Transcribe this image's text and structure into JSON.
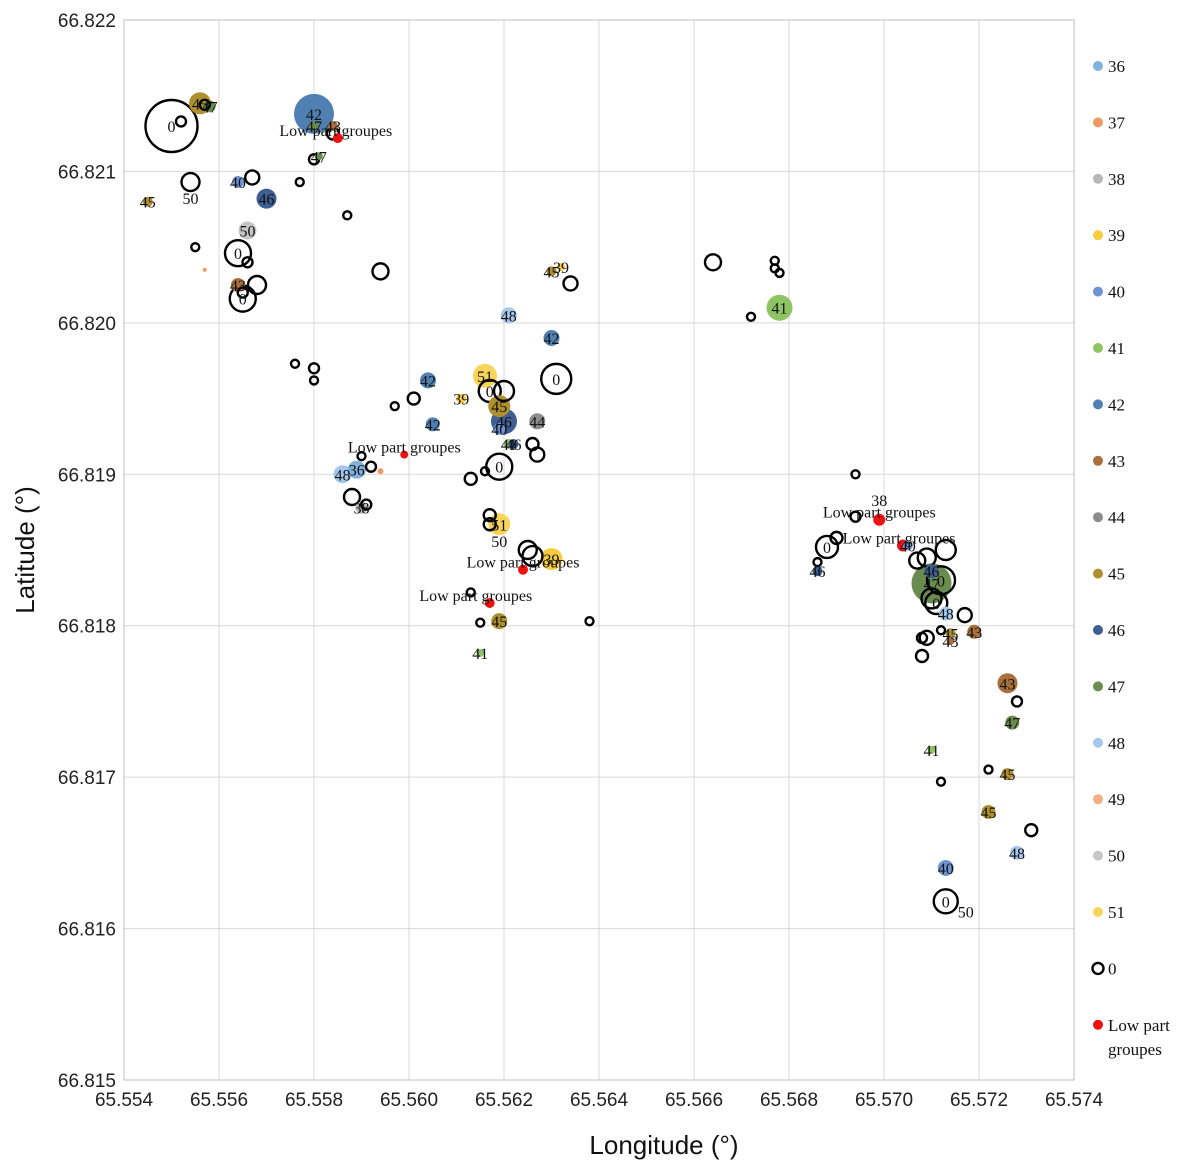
{
  "chart_data": {
    "type": "scatter",
    "xlabel": "Longitude (°)",
    "ylabel": "Latitude (°)",
    "xlim": [
      65.554,
      65.574
    ],
    "ylim": [
      66.815,
      66.822
    ],
    "x_ticks": [
      "65.554",
      "65.556",
      "65.558",
      "65.560",
      "65.562",
      "65.564",
      "65.566",
      "65.568",
      "65.570",
      "65.572",
      "65.574"
    ],
    "y_ticks": [
      "66.815",
      "66.816",
      "66.817",
      "66.818",
      "66.819",
      "66.820",
      "66.821",
      "66.822"
    ],
    "grid": "on",
    "legend_position": "right",
    "legend": [
      {
        "name": "36",
        "color": "#7FB2DC",
        "kind": "dot"
      },
      {
        "name": "37",
        "color": "#EE9A64",
        "kind": "dot"
      },
      {
        "name": "38",
        "color": "#B7B7B7",
        "kind": "dot"
      },
      {
        "name": "39",
        "color": "#F8CC3C",
        "kind": "dot"
      },
      {
        "name": "40",
        "color": "#6D93D2",
        "kind": "dot"
      },
      {
        "name": "41",
        "color": "#8FC464",
        "kind": "dot"
      },
      {
        "name": "42",
        "color": "#4F80B1",
        "kind": "dot"
      },
      {
        "name": "43",
        "color": "#A9703E",
        "kind": "dot"
      },
      {
        "name": "44",
        "color": "#8C8C8C",
        "kind": "dot"
      },
      {
        "name": "45",
        "color": "#AE902F",
        "kind": "dot"
      },
      {
        "name": "46",
        "color": "#3F5E93",
        "kind": "dot"
      },
      {
        "name": "47",
        "color": "#6A8C4E",
        "kind": "dot"
      },
      {
        "name": "48",
        "color": "#A6C8EC",
        "kind": "dot"
      },
      {
        "name": "49",
        "color": "#F4AE83",
        "kind": "dot"
      },
      {
        "name": "50",
        "color": "#C6C6C6",
        "kind": "dot"
      },
      {
        "name": "51",
        "color": "#F9D45A",
        "kind": "dot"
      },
      {
        "name": "0",
        "color": "#000000",
        "kind": "ring"
      },
      {
        "name": "Low part groupes",
        "color": "#EE1111",
        "kind": "dot"
      }
    ],
    "low_label": "Low part groupes",
    "series_colors": {
      "36": "#7FB2DC",
      "37": "#EE9A64",
      "38": "#B7B7B7",
      "39": "#F8CC3C",
      "40": "#6D93D2",
      "41": "#8FC464",
      "42": "#4F80B1",
      "43": "#A9703E",
      "44": "#8C8C8C",
      "45": "#AE902F",
      "46": "#3F5E93",
      "47": "#6A8C4E",
      "48": "#A6C8EC",
      "49": "#F4AE83",
      "50": "#C6C6C6",
      "51": "#F9D45A",
      "0": "#000000",
      "low": "#EE1111"
    },
    "points": [
      {
        "x": 65.555,
        "y": 66.8213,
        "s": "0",
        "label": "0",
        "r": 26
      },
      {
        "x": 65.5552,
        "y": 66.82133,
        "s": "0",
        "label": "",
        "r": 5
      },
      {
        "x": 65.5556,
        "y": 66.82145,
        "s": "45",
        "label": "45",
        "r": 11
      },
      {
        "x": 65.5557,
        "y": 66.82144,
        "s": "0",
        "label": "",
        "r": 5
      },
      {
        "x": 65.5558,
        "y": 66.82143,
        "s": "47",
        "label": "47",
        "r": 6
      },
      {
        "x": 65.5554,
        "y": 66.82093,
        "s": "0",
        "label": "",
        "r": 9
      },
      {
        "x": 65.5554,
        "y": 66.82093,
        "s": "",
        "label": "50",
        "r": 0,
        "lx": 0,
        "ly": 16
      },
      {
        "x": 65.5545,
        "y": 66.8208,
        "s": "45",
        "label": "45",
        "r": 5
      },
      {
        "x": 65.5564,
        "y": 66.82093,
        "s": "40",
        "label": "40",
        "r": 6
      },
      {
        "x": 65.5567,
        "y": 66.82096,
        "s": "0",
        "label": "",
        "r": 7
      },
      {
        "x": 65.557,
        "y": 66.82082,
        "s": "46",
        "label": "46",
        "r": 10
      },
      {
        "x": 65.5566,
        "y": 66.82061,
        "s": "50",
        "label": "50",
        "r": 9
      },
      {
        "x": 65.5555,
        "y": 66.8205,
        "s": "0",
        "label": "",
        "r": 4
      },
      {
        "x": 65.5557,
        "y": 66.82035,
        "s": "37",
        "label": "",
        "r": 2
      },
      {
        "x": 65.5564,
        "y": 66.82046,
        "s": "0",
        "label": "0",
        "r": 13
      },
      {
        "x": 65.5566,
        "y": 66.8204,
        "s": "0",
        "label": "",
        "r": 5
      },
      {
        "x": 65.5564,
        "y": 66.82025,
        "s": "43",
        "label": "43",
        "r": 7
      },
      {
        "x": 65.5565,
        "y": 66.8202,
        "s": "0",
        "label": "",
        "r": 5
      },
      {
        "x": 65.5565,
        "y": 66.82016,
        "s": "0",
        "label": "0",
        "r": 13
      },
      {
        "x": 65.5568,
        "y": 66.82025,
        "s": "0",
        "label": "",
        "r": 9
      },
      {
        "x": 65.558,
        "y": 66.82138,
        "s": "42",
        "label": "42",
        "r": 20
      },
      {
        "x": 65.558,
        "y": 66.8213,
        "s": "47",
        "label": "47",
        "r": 5
      },
      {
        "x": 65.5584,
        "y": 66.8213,
        "s": "43",
        "label": "43",
        "r": 5
      },
      {
        "x": 65.5584,
        "y": 66.82125,
        "s": "0",
        "label": "",
        "r": 6
      },
      {
        "x": 65.5585,
        "y": 66.82122,
        "s": "low",
        "label": "Low part groupes",
        "r": 5,
        "lx": -2,
        "ly": 6
      },
      {
        "x": 65.558,
        "y": 66.82108,
        "s": "0",
        "label": "",
        "r": 5
      },
      {
        "x": 65.5581,
        "y": 66.8211,
        "s": "47",
        "label": "47",
        "r": 4
      },
      {
        "x": 65.5577,
        "y": 66.82093,
        "s": "0",
        "label": "",
        "r": 4
      },
      {
        "x": 65.5587,
        "y": 66.82071,
        "s": "0",
        "label": "",
        "r": 4
      },
      {
        "x": 65.5594,
        "y": 66.82034,
        "s": "0",
        "label": "",
        "r": 8
      },
      {
        "x": 65.5576,
        "y": 66.81973,
        "s": "0",
        "label": "",
        "r": 4
      },
      {
        "x": 65.558,
        "y": 66.8197,
        "s": "0",
        "label": "",
        "r": 5
      },
      {
        "x": 65.558,
        "y": 66.81962,
        "s": "0",
        "label": "",
        "r": 4
      },
      {
        "x": 65.5601,
        "y": 66.8195,
        "s": "0",
        "label": "",
        "r": 6
      },
      {
        "x": 65.5597,
        "y": 66.81945,
        "s": "0",
        "label": "",
        "r": 4
      },
      {
        "x": 65.5604,
        "y": 66.81962,
        "s": "42",
        "label": "42",
        "r": 8
      },
      {
        "x": 65.5605,
        "y": 66.81933,
        "s": "42",
        "label": "42",
        "r": 7
      },
      {
        "x": 65.5611,
        "y": 66.8195,
        "s": "39",
        "label": "39",
        "r": 5
      },
      {
        "x": 65.5599,
        "y": 66.81913,
        "s": "low",
        "label": "Low part groupes",
        "r": 4,
        "lx": 0,
        "ly": 6
      },
      {
        "x": 65.559,
        "y": 66.81912,
        "s": "0",
        "label": "",
        "r": 4
      },
      {
        "x": 65.5586,
        "y": 66.819,
        "s": "48",
        "label": "48",
        "r": 9
      },
      {
        "x": 65.5589,
        "y": 66.81903,
        "s": "36",
        "label": "36",
        "r": 9
      },
      {
        "x": 65.5592,
        "y": 66.81905,
        "s": "0",
        "label": "",
        "r": 5
      },
      {
        "x": 65.5594,
        "y": 66.81902,
        "s": "37",
        "label": "",
        "r": 3
      },
      {
        "x": 65.5588,
        "y": 66.81885,
        "s": "0",
        "label": "",
        "r": 8
      },
      {
        "x": 65.559,
        "y": 66.81878,
        "s": "38",
        "label": "38",
        "r": 6
      },
      {
        "x": 65.5591,
        "y": 66.8188,
        "s": "0",
        "label": "",
        "r": 5
      },
      {
        "x": 65.5616,
        "y": 66.81965,
        "s": "51",
        "label": "51",
        "r": 12
      },
      {
        "x": 65.5617,
        "y": 66.81955,
        "s": "0",
        "label": "0",
        "r": 11
      },
      {
        "x": 65.562,
        "y": 66.81955,
        "s": "0",
        "label": "",
        "r": 10
      },
      {
        "x": 65.5619,
        "y": 66.81945,
        "s": "45",
        "label": "45",
        "r": 11
      },
      {
        "x": 65.562,
        "y": 66.81935,
        "s": "46",
        "label": "46",
        "r": 13
      },
      {
        "x": 65.5619,
        "y": 66.8193,
        "s": "40",
        "label": "40",
        "r": 6
      },
      {
        "x": 65.5621,
        "y": 66.8192,
        "s": "41",
        "label": "41",
        "r": 5
      },
      {
        "x": 65.5622,
        "y": 66.8192,
        "s": "46",
        "label": "46",
        "r": 5
      },
      {
        "x": 65.5627,
        "y": 66.81935,
        "s": "44",
        "label": "44",
        "r": 8
      },
      {
        "x": 65.5626,
        "y": 66.8192,
        "s": "0",
        "label": "",
        "r": 6
      },
      {
        "x": 65.5627,
        "y": 66.81913,
        "s": "0",
        "label": "",
        "r": 7
      },
      {
        "x": 65.5619,
        "y": 66.81905,
        "s": "0",
        "label": "0",
        "r": 13
      },
      {
        "x": 65.5616,
        "y": 66.81902,
        "s": "0",
        "label": "",
        "r": 4
      },
      {
        "x": 65.5613,
        "y": 66.81897,
        "s": "0",
        "label": "",
        "r": 6
      },
      {
        "x": 65.563,
        "y": 66.8199,
        "s": "42",
        "label": "42",
        "r": 8
      },
      {
        "x": 65.5621,
        "y": 66.82005,
        "s": "48",
        "label": "48",
        "r": 8
      },
      {
        "x": 65.5631,
        "y": 66.81963,
        "s": "0",
        "label": "0",
        "r": 15
      },
      {
        "x": 65.563,
        "y": 66.82034,
        "s": "45",
        "label": "45",
        "r": 5
      },
      {
        "x": 65.5632,
        "y": 66.82037,
        "s": "39",
        "label": "39",
        "r": 4
      },
      {
        "x": 65.5634,
        "y": 66.82026,
        "s": "0",
        "label": "",
        "r": 7
      },
      {
        "x": 65.5617,
        "y": 66.81873,
        "s": "0",
        "label": "",
        "r": 6
      },
      {
        "x": 65.5617,
        "y": 66.81867,
        "s": "0",
        "label": "",
        "r": 6
      },
      {
        "x": 65.5619,
        "y": 66.81867,
        "s": "51",
        "label": "51",
        "r": 11
      },
      {
        "x": 65.5619,
        "y": 66.81856,
        "s": "",
        "label": "50",
        "r": 0
      },
      {
        "x": 65.5625,
        "y": 66.8185,
        "s": "0",
        "label": "",
        "r": 9
      },
      {
        "x": 65.5626,
        "y": 66.81846,
        "s": "0",
        "label": "",
        "r": 10
      },
      {
        "x": 65.563,
        "y": 66.81844,
        "s": "39",
        "label": "39",
        "r": 11
      },
      {
        "x": 65.5624,
        "y": 66.81837,
        "s": "low",
        "label": "Low part groupes",
        "r": 5,
        "lx": 0,
        "ly": 6
      },
      {
        "x": 65.5617,
        "y": 66.81815,
        "s": "low",
        "label": "Low part groupes",
        "r": 5,
        "lx": -14,
        "ly": 6
      },
      {
        "x": 65.5613,
        "y": 66.81822,
        "s": "0",
        "label": "",
        "r": 4
      },
      {
        "x": 65.5615,
        "y": 66.81802,
        "s": "0",
        "label": "",
        "r": 4
      },
      {
        "x": 65.5619,
        "y": 66.81803,
        "s": "45",
        "label": "45",
        "r": 8
      },
      {
        "x": 65.5615,
        "y": 66.81782,
        "s": "41",
        "label": "41",
        "r": 4
      },
      {
        "x": 65.5638,
        "y": 66.81803,
        "s": "0",
        "label": "",
        "r": 4
      },
      {
        "x": 65.5664,
        "y": 66.8204,
        "s": "0",
        "label": "",
        "r": 8
      },
      {
        "x": 65.5677,
        "y": 66.82041,
        "s": "0",
        "label": "",
        "r": 4
      },
      {
        "x": 65.5677,
        "y": 66.82036,
        "s": "0",
        "label": "",
        "r": 4
      },
      {
        "x": 65.5678,
        "y": 66.82033,
        "s": "0",
        "label": "",
        "r": 4
      },
      {
        "x": 65.5672,
        "y": 66.82004,
        "s": "0",
        "label": "",
        "r": 4
      },
      {
        "x": 65.5678,
        "y": 66.8201,
        "s": "41",
        "label": "41",
        "r": 13
      },
      {
        "x": 65.5694,
        "y": 66.819,
        "s": "0",
        "label": "",
        "r": 4
      },
      {
        "x": 65.5694,
        "y": 66.81872,
        "s": "0",
        "label": "",
        "r": 5
      },
      {
        "x": 65.5699,
        "y": 66.81883,
        "s": "",
        "label": "38",
        "r": 0
      },
      {
        "x": 65.5699,
        "y": 66.8187,
        "s": "low",
        "label": "Low part groupes",
        "r": 6,
        "lx": 0,
        "ly": 6
      },
      {
        "x": 65.569,
        "y": 66.81858,
        "s": "0",
        "label": "",
        "r": 6
      },
      {
        "x": 65.5688,
        "y": 66.81852,
        "s": "0",
        "label": "0",
        "r": 11
      },
      {
        "x": 65.5686,
        "y": 66.81842,
        "s": "0",
        "label": "",
        "r": 4
      },
      {
        "x": 65.5686,
        "y": 66.81836,
        "s": "46",
        "label": "46",
        "r": 5
      },
      {
        "x": 65.5704,
        "y": 66.81853,
        "s": "low",
        "label": "Low part groupes",
        "r": 6,
        "lx": -4,
        "ly": 6
      },
      {
        "x": 65.5705,
        "y": 66.81853,
        "s": "40",
        "label": "40",
        "r": 5
      },
      {
        "x": 65.5707,
        "y": 66.81843,
        "s": "0",
        "label": "",
        "r": 8
      },
      {
        "x": 65.5709,
        "y": 66.81845,
        "s": "0",
        "label": "",
        "r": 9
      },
      {
        "x": 65.5713,
        "y": 66.8185,
        "s": "0",
        "label": "",
        "r": 10
      },
      {
        "x": 65.571,
        "y": 66.81836,
        "s": "46",
        "label": "46",
        "r": 7
      },
      {
        "x": 65.571,
        "y": 66.81828,
        "s": "47",
        "label": "47",
        "r": 20
      },
      {
        "x": 65.5712,
        "y": 66.8183,
        "s": "0",
        "label": "0",
        "r": 14
      },
      {
        "x": 65.571,
        "y": 66.81818,
        "s": "0",
        "label": "",
        "r": 10
      },
      {
        "x": 65.5711,
        "y": 66.81815,
        "s": "0",
        "label": "0",
        "r": 11
      },
      {
        "x": 65.5713,
        "y": 66.81808,
        "s": "48",
        "label": "48",
        "r": 7
      },
      {
        "x": 65.5717,
        "y": 66.81807,
        "s": "0",
        "label": "",
        "r": 7
      },
      {
        "x": 65.5712,
        "y": 66.81797,
        "s": "0",
        "label": "",
        "r": 4
      },
      {
        "x": 65.5708,
        "y": 66.81792,
        "s": "0",
        "label": "",
        "r": 5
      },
      {
        "x": 65.5709,
        "y": 66.81792,
        "s": "0",
        "label": "",
        "r": 7
      },
      {
        "x": 65.5714,
        "y": 66.81795,
        "s": "45",
        "label": "45",
        "r": 5
      },
      {
        "x": 65.5714,
        "y": 66.8179,
        "s": "43",
        "label": "43",
        "r": 4
      },
      {
        "x": 65.5719,
        "y": 66.81796,
        "s": "43",
        "label": "43",
        "r": 7
      },
      {
        "x": 65.5708,
        "y": 66.8178,
        "s": "0",
        "label": "",
        "r": 6
      },
      {
        "x": 65.5726,
        "y": 66.81762,
        "s": "43",
        "label": "43",
        "r": 10
      },
      {
        "x": 65.5728,
        "y": 66.8175,
        "s": "0",
        "label": "",
        "r": 5
      },
      {
        "x": 65.5727,
        "y": 66.81736,
        "s": "47",
        "label": "47",
        "r": 7
      },
      {
        "x": 65.571,
        "y": 66.81718,
        "s": "41",
        "label": "41",
        "r": 4
      },
      {
        "x": 65.5722,
        "y": 66.81705,
        "s": "0",
        "label": "",
        "r": 4
      },
      {
        "x": 65.5726,
        "y": 66.81702,
        "s": "45",
        "label": "45",
        "r": 6
      },
      {
        "x": 65.5712,
        "y": 66.81697,
        "s": "0",
        "label": "",
        "r": 4
      },
      {
        "x": 65.5722,
        "y": 66.81677,
        "s": "45",
        "label": "45",
        "r": 7
      },
      {
        "x": 65.5731,
        "y": 66.81665,
        "s": "0",
        "label": "",
        "r": 6
      },
      {
        "x": 65.5728,
        "y": 66.8165,
        "s": "48",
        "label": "48",
        "r": 7
      },
      {
        "x": 65.5713,
        "y": 66.8164,
        "s": "40",
        "label": "40",
        "r": 8
      },
      {
        "x": 65.5713,
        "y": 66.81618,
        "s": "0",
        "label": "0",
        "r": 12
      },
      {
        "x": 65.5713,
        "y": 66.81618,
        "s": "",
        "label": "50",
        "r": 0,
        "lx": 20,
        "ly": 10
      }
    ]
  }
}
